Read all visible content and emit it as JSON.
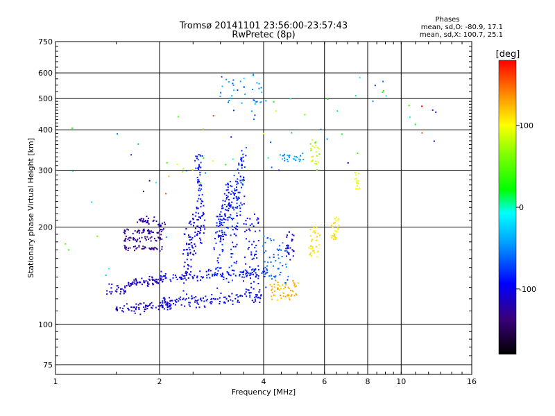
{
  "chart_data": {
    "type": "scatter",
    "title": "Tromsø 20141101 23:56:00-23:57:43",
    "subtitle": "RwPretec (8p)",
    "xlabel": "Frequency [MHz]",
    "ylabel": "Stationary phase Virtual Height [km]",
    "x_scale": "log",
    "y_scale": "log",
    "xlim": [
      1,
      16
    ],
    "ylim": [
      70,
      750
    ],
    "x_ticks": [
      1,
      2,
      4,
      6,
      8,
      10,
      16
    ],
    "x_tick_labels": [
      "1",
      "2",
      "4",
      "6",
      "8",
      "10",
      "16"
    ],
    "y_ticks": [
      75,
      100,
      200,
      300,
      400,
      500,
      600,
      750
    ],
    "y_tick_labels": [
      "75",
      "100",
      "200",
      "300",
      "400",
      "500",
      "600",
      "750"
    ],
    "grid": true,
    "phase_info": {
      "title": "Phases",
      "line_o": "mean, sd,O: -80.9, 17.1",
      "line_x": "mean, sd,X: 100.7, 25.1"
    },
    "colorbar": {
      "label": "[deg]",
      "range": [
        -180,
        180
      ],
      "ticks": [
        100,
        0,
        -100
      ],
      "tick_labels": [
        "100",
        "0",
        "-100"
      ]
    },
    "traces": [
      {
        "f0": 1.58,
        "f1": 2.05,
        "h0": 131,
        "h1": 139,
        "n": 70,
        "hs": 2.5,
        "fs": 0.02,
        "ph": -115,
        "ps": 12
      },
      {
        "f0": 1.38,
        "f1": 1.6,
        "h0": 125,
        "h1": 131,
        "n": 25,
        "hs": 2,
        "fs": 0.01,
        "ph": -110,
        "ps": 12
      },
      {
        "f0": 1.48,
        "f1": 2.2,
        "h0": 109,
        "h1": 117,
        "n": 70,
        "hs": 2.5,
        "fs": 0.02,
        "ph": -112,
        "ps": 12
      },
      {
        "f0": 2.0,
        "f1": 4.0,
        "h0": 113,
        "h1": 126,
        "n": 130,
        "hs": 3,
        "fs": 0.03,
        "ph": -95,
        "ps": 15
      },
      {
        "f0": 2.0,
        "f1": 4.1,
        "h0": 136,
        "h1": 148,
        "n": 120,
        "hs": 3,
        "fs": 0.03,
        "ph": -90,
        "ps": 15
      },
      {
        "f0": 1.58,
        "f1": 2.05,
        "h0": 170,
        "h1": 174,
        "n": 40,
        "hs": 2,
        "fs": 0.01,
        "ph": -130,
        "ps": 10
      },
      {
        "f0": 1.58,
        "f1": 2.05,
        "h0": 181,
        "h1": 186,
        "n": 40,
        "hs": 2,
        "fs": 0.01,
        "ph": -130,
        "ps": 10
      },
      {
        "f0": 1.58,
        "f1": 2.05,
        "h0": 191,
        "h1": 196,
        "n": 40,
        "hs": 2,
        "fs": 0.01,
        "ph": -125,
        "ps": 10
      },
      {
        "f0": 1.72,
        "f1": 1.95,
        "h0": 205,
        "h1": 214,
        "n": 25,
        "hs": 2,
        "fs": 0.01,
        "ph": -125,
        "ps": 10
      },
      {
        "f0": 1.95,
        "f1": 2.1,
        "h0": 198,
        "h1": 208,
        "n": 12,
        "hs": 2,
        "fs": 0.01,
        "ph": -120,
        "ps": 10
      },
      {
        "f0": 2.35,
        "f1": 2.7,
        "h0": 128,
        "h1": 250,
        "n": 110,
        "hs": 5,
        "fs": 0.05,
        "ph": -100,
        "ps": 15
      },
      {
        "f0": 2.55,
        "f1": 2.65,
        "h0": 240,
        "h1": 340,
        "n": 40,
        "hs": 5,
        "fs": 0.03,
        "ph": -85,
        "ps": 15
      },
      {
        "f0": 2.9,
        "f1": 3.2,
        "h0": 125,
        "h1": 285,
        "n": 110,
        "hs": 5,
        "fs": 0.05,
        "ph": -90,
        "ps": 15
      },
      {
        "f0": 3.2,
        "f1": 3.5,
        "h0": 120,
        "h1": 355,
        "n": 120,
        "hs": 5,
        "fs": 0.05,
        "ph": -85,
        "ps": 15
      },
      {
        "f0": 3.5,
        "f1": 3.9,
        "h0": 125,
        "h1": 220,
        "n": 60,
        "hs": 5,
        "fs": 0.05,
        "ph": -95,
        "ps": 15
      },
      {
        "f0": 4.0,
        "f1": 4.7,
        "h0": 130,
        "h1": 185,
        "n": 60,
        "hs": 4,
        "fs": 0.05,
        "ph": -60,
        "ps": 15
      },
      {
        "f0": 4.2,
        "f1": 5.0,
        "h0": 120,
        "h1": 135,
        "n": 60,
        "hs": 3,
        "fs": 0.05,
        "ph": 125,
        "ps": 12
      },
      {
        "f0": 4.6,
        "f1": 4.9,
        "h0": 160,
        "h1": 200,
        "n": 25,
        "hs": 4,
        "fs": 0.03,
        "ph": -110,
        "ps": 10
      },
      {
        "f0": 4.5,
        "f1": 5.2,
        "h0": 320,
        "h1": 335,
        "n": 25,
        "hs": 3,
        "fs": 0.05,
        "ph": -40,
        "ps": 15
      },
      {
        "f0": 5.4,
        "f1": 5.8,
        "h0": 160,
        "h1": 200,
        "n": 35,
        "hs": 4,
        "fs": 0.03,
        "ph": 110,
        "ps": 12
      },
      {
        "f0": 5.5,
        "f1": 5.8,
        "h0": 300,
        "h1": 370,
        "n": 25,
        "hs": 5,
        "fs": 0.03,
        "ph": 80,
        "ps": 25
      },
      {
        "f0": 6.3,
        "f1": 6.6,
        "h0": 180,
        "h1": 215,
        "n": 30,
        "hs": 4,
        "fs": 0.03,
        "ph": 110,
        "ps": 15
      },
      {
        "f0": 7.3,
        "f1": 7.6,
        "h0": 260,
        "h1": 300,
        "n": 15,
        "hs": 4,
        "fs": 0.02,
        "ph": 95,
        "ps": 10
      },
      {
        "f0": 3.0,
        "f1": 4.0,
        "h0": 420,
        "h1": 590,
        "n": 40,
        "hs": 5,
        "fs": 0.05,
        "ph": -50,
        "ps": 30
      },
      {
        "f0": 1.0,
        "f1": 12.0,
        "h0": 100,
        "h1": 620,
        "n": 70,
        "hs": 40,
        "fs": 0.3,
        "ph": 0,
        "ps": 120
      }
    ]
  }
}
